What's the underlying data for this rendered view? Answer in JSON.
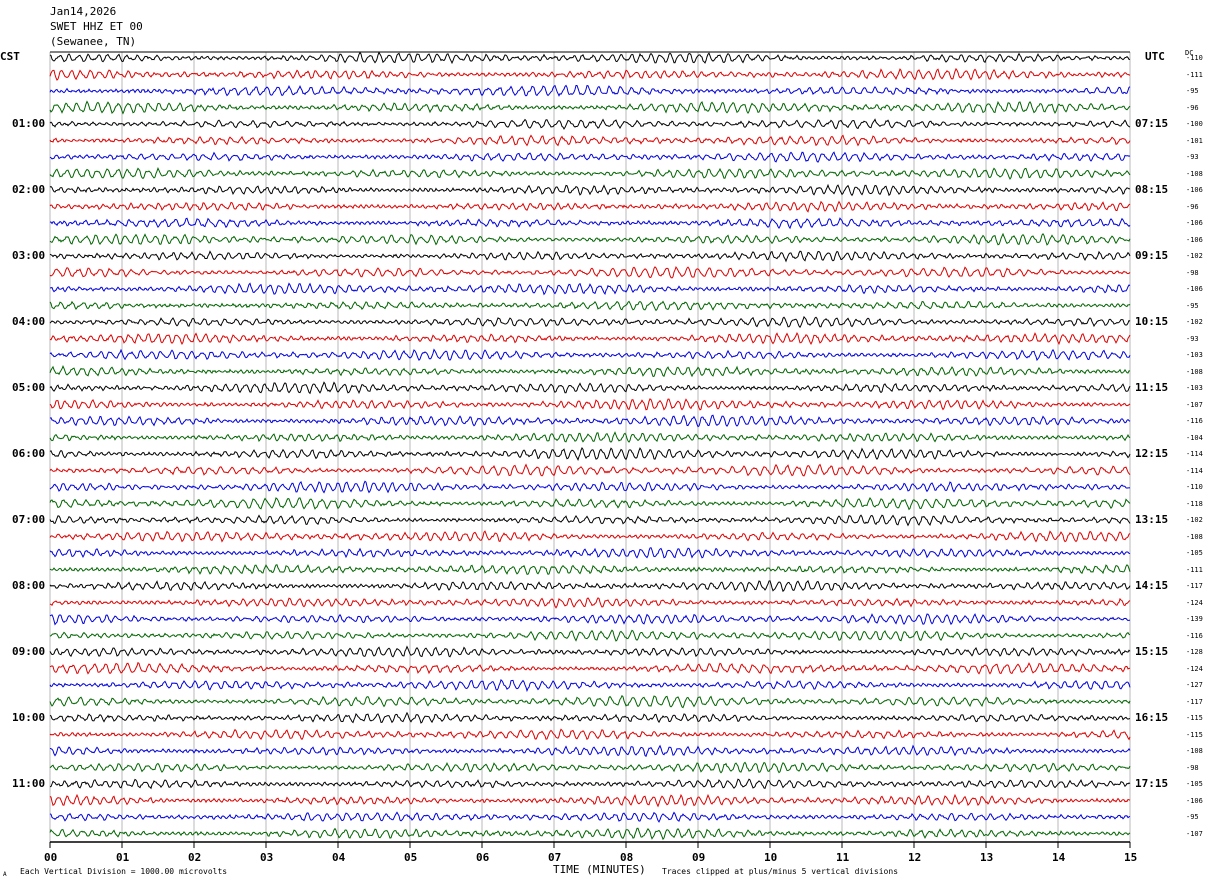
{
  "header": {
    "date": "Jan14,2026",
    "station": "SWET HHZ ET 00",
    "location": "(Sewanee, TN)"
  },
  "left_axis_title": "CST",
  "right_axis_title": "UTC",
  "dc_label": "DC",
  "footer": {
    "scale_note": "Each Vertical Division = 1000.00 microvolts",
    "clip_note": "Traces clipped at plus/minus 5 vertical divisions",
    "corner_mark": "A"
  },
  "chart_data": {
    "type": "line",
    "title": "SWET HHZ ET 00",
    "xlabel": "TIME (MINUTES)",
    "xlim": [
      0,
      15
    ],
    "x_ticks": [
      "00",
      "01",
      "02",
      "03",
      "04",
      "05",
      "06",
      "07",
      "08",
      "09",
      "10",
      "11",
      "12",
      "13",
      "14",
      "15"
    ],
    "rows_per_hour": 4,
    "minutes_per_row": 15,
    "trace_colors": [
      "#000000",
      "#dd0000",
      "#0000dd",
      "#006400"
    ],
    "left_hour_labels": [
      "01:00",
      "02:00",
      "03:00",
      "04:00",
      "05:00",
      "06:00",
      "07:00",
      "08:00",
      "09:00",
      "10:00",
      "11:00"
    ],
    "right_hour_labels": [
      "07:15",
      "08:15",
      "09:15",
      "10:15",
      "11:15",
      "12:15",
      "13:15",
      "14:15",
      "15:15",
      "16:15",
      "17:15"
    ],
    "dc_offsets": [
      -110,
      -111,
      -95,
      -96,
      -100,
      -101,
      -93,
      -108,
      -106,
      -96,
      -106,
      -106,
      -102,
      -98,
      -106,
      -95,
      -102,
      -93,
      -103,
      -108,
      -103,
      -107,
      -116,
      -104,
      -114,
      -114,
      -110,
      -118,
      -102,
      -108,
      -105,
      -111,
      -117,
      -124,
      -139,
      -116,
      -128,
      -124,
      -127,
      -117,
      -115,
      -115,
      -108,
      -98,
      -105,
      -106,
      -95,
      -107
    ],
    "clip_divisions": 5,
    "microvolts_per_division": 1000
  }
}
